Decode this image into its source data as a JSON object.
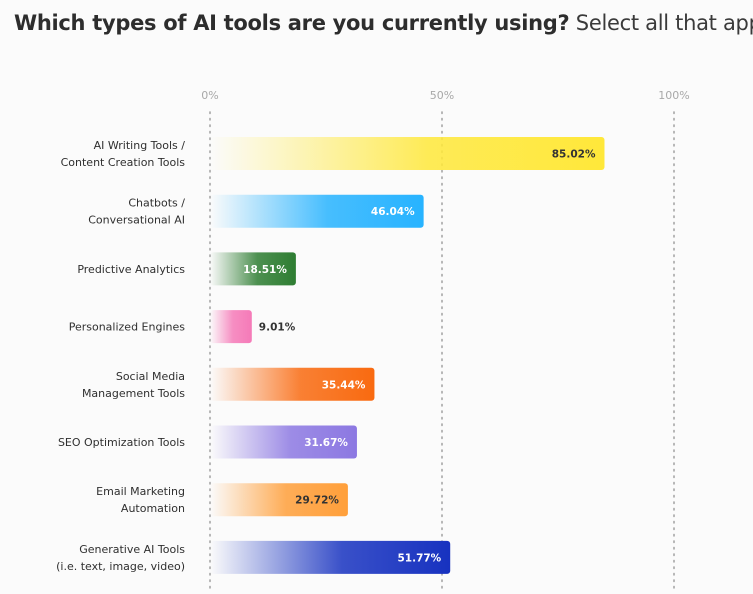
{
  "title": {
    "question": "Which types of AI tools are you currently using?",
    "instruction": "Select all that apply."
  },
  "chart_data": {
    "type": "bar",
    "orientation": "horizontal",
    "xlim": [
      0,
      100
    ],
    "x_ticks": [
      "0%",
      "50%",
      "100%"
    ],
    "grid": "dotted vertical lines at 0%, 50%, 100%",
    "categories": [
      [
        "AI Writing Tools /",
        "Content Creation Tools"
      ],
      [
        "Chatbots /",
        "Conversational AI"
      ],
      [
        "Predictive Analytics"
      ],
      [
        "Personalized Engines"
      ],
      [
        "Social Media",
        "Management Tools"
      ],
      [
        "SEO Optimization Tools"
      ],
      [
        "Email Marketing",
        "Automation"
      ],
      [
        "Generative AI Tools",
        "(i.e. text, image, video)"
      ]
    ],
    "values": [
      85.02,
      46.04,
      18.51,
      9.01,
      35.44,
      31.67,
      29.72,
      51.77
    ],
    "value_labels": [
      "85.02%",
      "46.04%",
      "18.51%",
      "9.01%",
      "35.44%",
      "31.67%",
      "29.72%",
      "51.77%"
    ],
    "colors": [
      "#ffe83a",
      "#27b3ff",
      "#2e7d32",
      "#f57ab8",
      "#f96a10",
      "#8c78e2",
      "#ff9f3a",
      "#1732c0"
    ],
    "label_colors": [
      "#333333",
      "#ffffff",
      "#ffffff",
      "#333333",
      "#ffffff",
      "#ffffff",
      "#333333",
      "#ffffff"
    ]
  }
}
